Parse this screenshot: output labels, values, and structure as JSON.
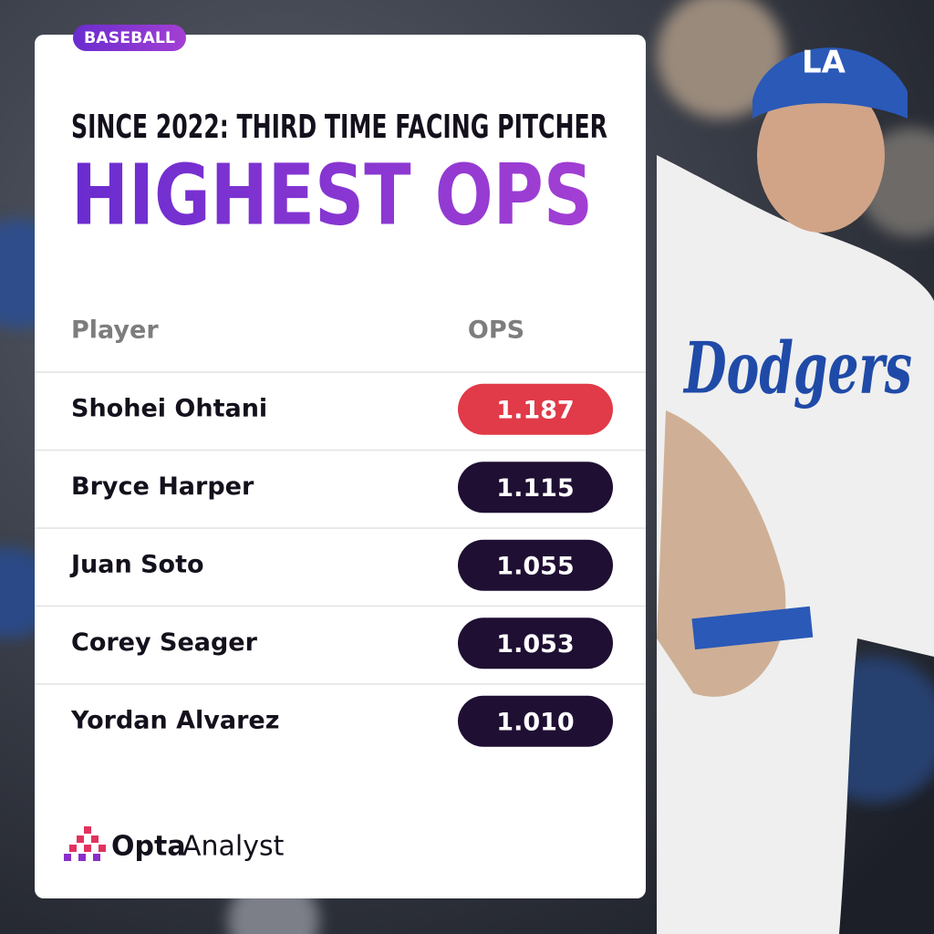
{
  "badge": "BASEBALL",
  "subtitle": "SINCE 2022: THIRD TIME FACING PITCHER",
  "title": "HIGHEST OPS",
  "table": {
    "headers": [
      "Player",
      "OPS"
    ],
    "rows": [
      [
        "Shohei Ohtani",
        "1.187"
      ],
      [
        "Bryce Harper",
        "1.115"
      ],
      [
        "Juan Soto",
        "1.055"
      ],
      [
        "Corey Seager",
        "1.053"
      ],
      [
        "Yordan Alvarez",
        "1.010"
      ]
    ]
  },
  "logo": {
    "brand": "Opta",
    "product": "Analyst"
  },
  "photo_text": {
    "jersey": "Dodgers",
    "cap": "LA"
  }
}
